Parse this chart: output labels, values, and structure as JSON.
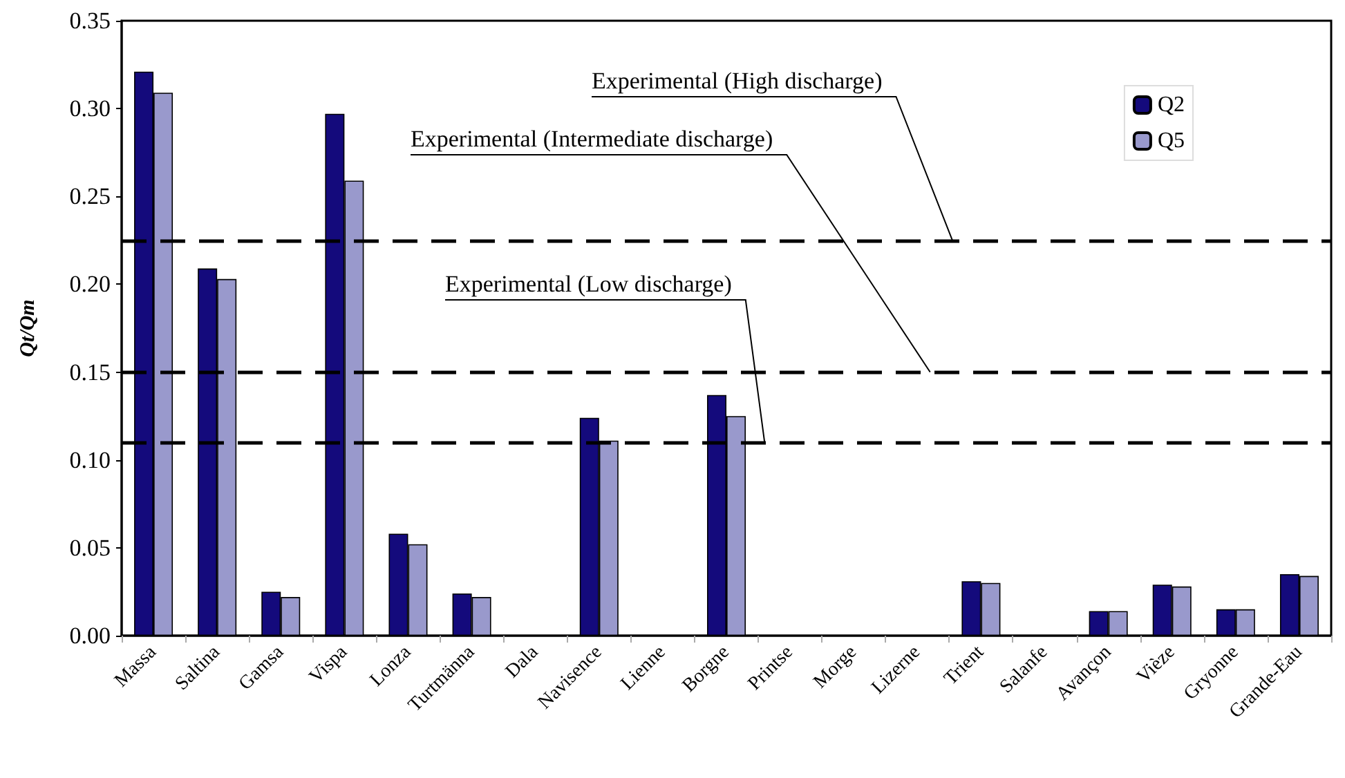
{
  "chart_data": {
    "type": "bar",
    "ylabel": "Qt/Qm",
    "categories": [
      "Massa",
      "Saltina",
      "Gamsa",
      "Vispa",
      "Lonza",
      "Turtmänna",
      "Dala",
      "Navisence",
      "Lienne",
      "Borgne",
      "Printse",
      "Morge",
      "Lizerne",
      "Trient",
      "Salanfe",
      "Avançon",
      "Vièze",
      "Gryonne",
      "Grande-Eau"
    ],
    "series": [
      {
        "name": "Q2",
        "color": "#140a7c",
        "values": [
          0.321,
          0.209,
          0.025,
          0.297,
          0.058,
          0.024,
          null,
          0.124,
          null,
          0.137,
          null,
          null,
          null,
          0.031,
          null,
          0.014,
          0.029,
          0.015,
          0.035
        ]
      },
      {
        "name": "Q5",
        "color": "#9999cc",
        "values": [
          0.309,
          0.203,
          0.022,
          0.259,
          0.052,
          0.022,
          null,
          0.111,
          null,
          0.125,
          null,
          null,
          null,
          0.03,
          null,
          0.014,
          0.028,
          0.015,
          0.034
        ]
      }
    ],
    "ylim": [
      0,
      0.35
    ],
    "yticks": [
      {
        "value": 0,
        "label": "0.00"
      },
      {
        "value": 0.05,
        "label": "0.05"
      },
      {
        "value": 0.1,
        "label": "0.10"
      },
      {
        "value": 0.15,
        "label": "0.15"
      },
      {
        "value": 0.2,
        "label": "0.20"
      },
      {
        "value": 0.25,
        "label": "0.25"
      },
      {
        "value": 0.3,
        "label": "0.30"
      },
      {
        "value": 0.35,
        "label": "0.35"
      }
    ],
    "ref_lines": [
      {
        "axis": "y",
        "value": 0.225,
        "label": "Experimental (High discharge)",
        "color": "#000000",
        "line_style": "dashed"
      },
      {
        "axis": "y",
        "value": 0.15,
        "label": "Experimental (Intermediate discharge)",
        "color": "#000000",
        "line_style": "dashed"
      },
      {
        "axis": "y",
        "value": 0.11,
        "label": "Experimental (Low discharge)",
        "color": "#000000",
        "line_style": "dashed"
      }
    ],
    "grid": false,
    "legend": "top right"
  }
}
